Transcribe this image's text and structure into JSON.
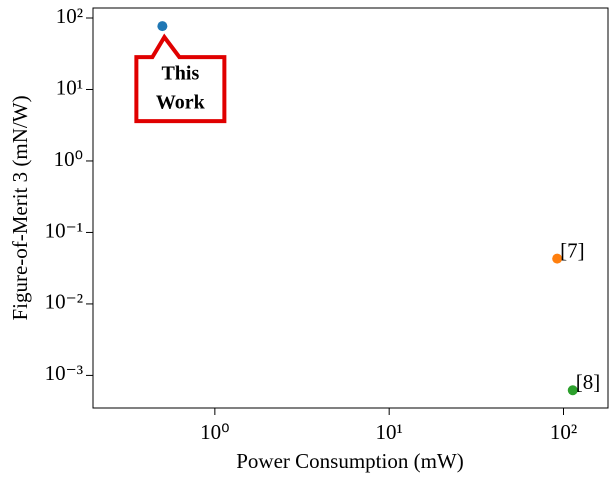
{
  "chart_data": {
    "type": "scatter",
    "xlabel": "Power Consumption (mW)",
    "ylabel": "Figure-of-Merit 3 (mN/W)",
    "xscale": "log",
    "yscale": "log",
    "xlim": [
      0.2,
      180
    ],
    "ylim": [
      0.00035,
      138
    ],
    "xticks": [
      {
        "value": 1,
        "label": "10⁰"
      },
      {
        "value": 10,
        "label": "10¹"
      },
      {
        "value": 100,
        "label": "10²"
      }
    ],
    "yticks": [
      {
        "value": 0.001,
        "label": "10⁻³"
      },
      {
        "value": 0.01,
        "label": "10⁻²"
      },
      {
        "value": 0.1,
        "label": "10⁻¹"
      },
      {
        "value": 1,
        "label": "10⁰"
      },
      {
        "value": 10,
        "label": "10¹"
      },
      {
        "value": 100,
        "label": "10²"
      }
    ],
    "series": [
      {
        "color": "#1f77b4",
        "x": [
          0.5
        ],
        "values": [
          77
        ],
        "annotation": [
          "This",
          "Work"
        ]
      },
      {
        "name": "[7]",
        "color": "#ff7f0e",
        "x": [
          92
        ],
        "values": [
          0.043
        ]
      },
      {
        "name": "[8]",
        "color": "#2ca02c",
        "x": [
          113
        ],
        "values": [
          0.00062
        ]
      }
    ]
  }
}
